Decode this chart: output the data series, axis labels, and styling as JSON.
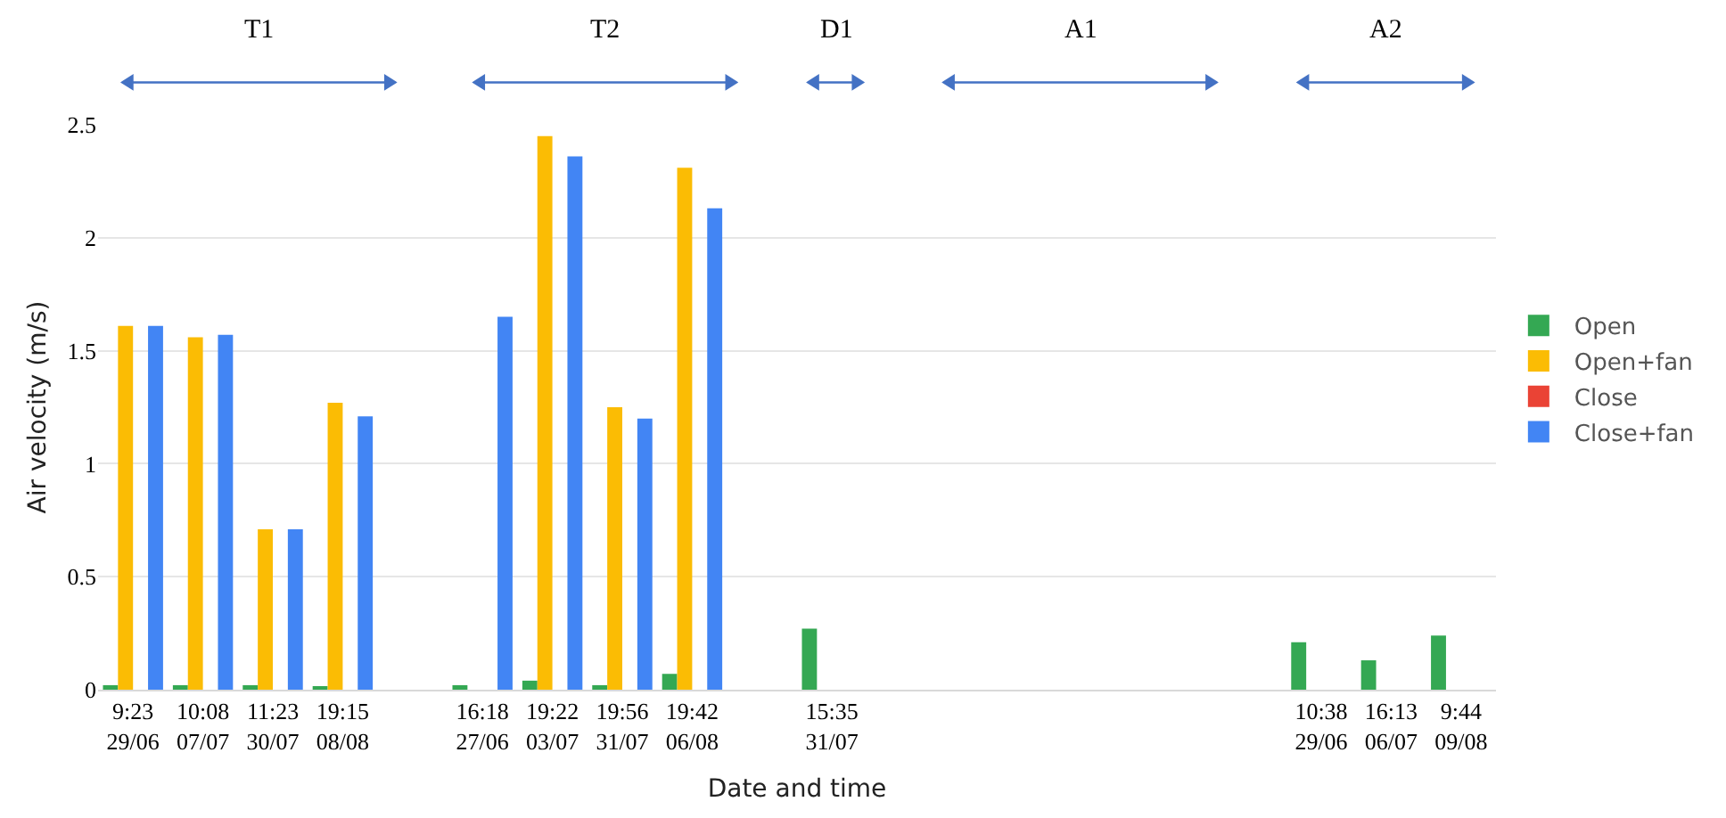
{
  "chart_data": {
    "type": "bar",
    "xlabel": "Date and time",
    "ylabel": "Air velocity (m/s)",
    "categories": [
      "9:23\n29/06",
      "10:08\n07/07",
      "11:23\n30/07",
      "19:15\n08/08",
      null,
      "16:18\n27/06",
      "19:22\n03/07",
      "19:56\n31/07",
      "19:42\n06/08",
      null,
      "15:35\n31/07",
      null,
      null,
      null,
      null,
      null,
      null,
      "10:38\n29/06",
      "16:13\n06/07",
      "9:44\n09/08"
    ],
    "series": [
      {
        "name": "Open",
        "color": "#34a853",
        "values": [
          0.02,
          0.02,
          0.02,
          0.01,
          null,
          0.02,
          0.04,
          0.02,
          0.07,
          null,
          0.27,
          null,
          null,
          null,
          null,
          null,
          null,
          0.21,
          0.13,
          0.24
        ]
      },
      {
        "name": "Open+fan",
        "color": "#fbbc04",
        "values": [
          1.61,
          1.56,
          0.71,
          1.27,
          null,
          null,
          2.45,
          1.25,
          2.31,
          null,
          null,
          null,
          null,
          null,
          null,
          null,
          null,
          null,
          null,
          null
        ]
      },
      {
        "name": "Close",
        "color": "#ea4335",
        "values": [
          null,
          null,
          null,
          null,
          null,
          null,
          null,
          null,
          null,
          null,
          null,
          null,
          null,
          null,
          null,
          null,
          null,
          null,
          null,
          null
        ]
      },
      {
        "name": "Close+fan",
        "color": "#4285f4",
        "values": [
          1.61,
          1.57,
          0.71,
          1.21,
          null,
          1.65,
          2.36,
          1.2,
          2.13,
          null,
          null,
          null,
          null,
          null,
          null,
          null,
          null,
          null,
          null,
          null
        ]
      }
    ],
    "ylim": [
      0,
      2.5
    ],
    "yticks": [
      0,
      0.5,
      1,
      1.5,
      2,
      2.5
    ],
    "grid": "y",
    "legend": "right",
    "annotations": [
      "T1",
      "T2",
      "D1",
      "A1",
      "A2"
    ]
  }
}
